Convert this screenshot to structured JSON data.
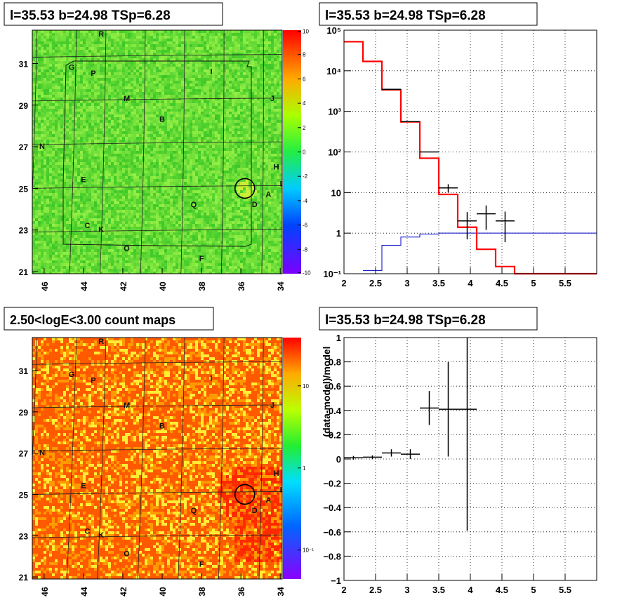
{
  "panels": {
    "top_left_title": "l=35.53 b=24.98 TSp=6.28",
    "top_right_title": "l=35.53 b=24.98 TSp=6.28",
    "bottom_left_title": "2.50<logE<3.00 count maps",
    "bottom_right_title": "l=35.53 b=24.98 TSp=6.28"
  },
  "map_labels": {
    "x_ticks": [
      "46",
      "44",
      "42",
      "40",
      "38",
      "36",
      "34"
    ],
    "y_ticks": [
      "31",
      "29",
      "27",
      "25",
      "23",
      "21"
    ],
    "source_letters": [
      "R",
      "G",
      "P",
      "I",
      "M",
      "J",
      "B",
      "N",
      "H",
      "E",
      "L",
      "A",
      "D",
      "Q",
      "C",
      "K",
      "O",
      "F"
    ]
  },
  "colorbars": {
    "top_ticks": [
      "10",
      "8",
      "6",
      "4",
      "2",
      "0",
      "-2",
      "-4",
      "-6",
      "-8",
      "-10"
    ],
    "bottom_ticks": [
      "10",
      "1",
      "10⁻¹"
    ]
  },
  "chart_data": [
    {
      "type": "heatmap",
      "title": "l=35.53 b=24.98 TSp=6.28",
      "x_ticks": [
        46,
        44,
        42,
        40,
        38,
        36,
        34
      ],
      "y_ticks": [
        31,
        29,
        27,
        25,
        23,
        21
      ],
      "xlim": [
        46.6,
        33.9
      ],
      "ylim": [
        20.9,
        32.6
      ],
      "z_range": [
        -10,
        10
      ],
      "marker_circle": {
        "l": 35.8,
        "b": 25.0
      }
    },
    {
      "type": "line",
      "title": "l=35.53 b=24.98 TSp=6.28",
      "y_scale": "log",
      "xlim": [
        2,
        6
      ],
      "ylim": [
        0.1,
        100000
      ],
      "x_ticks": [
        "2",
        "2.5",
        "3",
        "3.5",
        "4",
        "4.5",
        "5",
        "5.5"
      ],
      "y_ticks": [
        "10⁻¹",
        "1",
        "10",
        "10²",
        "10³",
        "10⁴",
        "10⁵"
      ],
      "series": [
        {
          "color": "#ff0000",
          "bins": [
            [
              2,
              2.3,
              52000
            ],
            [
              2.3,
              2.6,
              17000
            ],
            [
              2.6,
              2.9,
              3400
            ],
            [
              2.9,
              3.2,
              550
            ],
            [
              3.2,
              3.5,
              70
            ],
            [
              3.5,
              3.8,
              9
            ],
            [
              3.8,
              4.1,
              1.4
            ],
            [
              4.1,
              4.4,
              0.4
            ],
            [
              4.4,
              4.7,
              0.15
            ],
            [
              4.7,
              6,
              0.1
            ]
          ]
        },
        {
          "color": "#0000cc",
          "bins": [
            [
              2.3,
              2.6,
              0.12
            ],
            [
              2.6,
              2.9,
              0.5
            ],
            [
              2.9,
              3.2,
              0.8
            ],
            [
              3.2,
              3.5,
              0.95
            ],
            [
              3.5,
              6,
              1.0
            ]
          ]
        },
        {
          "color": "#000000",
          "points": [
            [
              2.75,
              3500,
              0.15,
              0
            ],
            [
              3.05,
              560,
              0.15,
              0
            ],
            [
              3.35,
              100,
              0.15,
              0
            ],
            [
              3.65,
              13,
              0.15,
              3
            ],
            [
              3.95,
              2,
              0.15,
              1.3
            ],
            [
              4.25,
              3,
              0.15,
              1.8
            ],
            [
              4.55,
              2,
              0.15,
              1.4
            ]
          ]
        }
      ]
    },
    {
      "type": "heatmap",
      "title": "2.50<logE<3.00 count maps",
      "x_ticks": [
        46,
        44,
        42,
        40,
        38,
        36,
        34
      ],
      "y_ticks": [
        31,
        29,
        27,
        25,
        23,
        21
      ],
      "xlim": [
        46.6,
        33.9
      ],
      "ylim": [
        20.9,
        32.6
      ],
      "z_scale": "log",
      "marker_circle": {
        "l": 35.8,
        "b": 25.0
      }
    },
    {
      "type": "scatter",
      "title": "l=35.53 b=24.98 TSp=6.28",
      "ylabel": "(data-model)/model",
      "xlim": [
        2,
        6
      ],
      "ylim": [
        -1,
        1
      ],
      "x_ticks": [
        "2",
        "2.5",
        "3",
        "3.5",
        "4",
        "4.5",
        "5",
        "5.5"
      ],
      "y_ticks": [
        "−1",
        "−0.8",
        "−0.6",
        "−0.4",
        "−0.2",
        "0",
        "0.2",
        "0.4",
        "0.6",
        "0.8",
        "1"
      ],
      "points": [
        [
          2.15,
          0.01,
          0.15,
          0.015
        ],
        [
          2.45,
          0.015,
          0.15,
          0.015
        ],
        [
          2.75,
          0.05,
          0.15,
          0.03
        ],
        [
          3.05,
          0.04,
          0.15,
          0.04
        ],
        [
          3.35,
          0.42,
          0.15,
          0.14
        ],
        [
          3.65,
          0.41,
          0.15,
          0.39
        ],
        [
          3.95,
          0.41,
          0.15,
          1.0
        ]
      ]
    }
  ]
}
